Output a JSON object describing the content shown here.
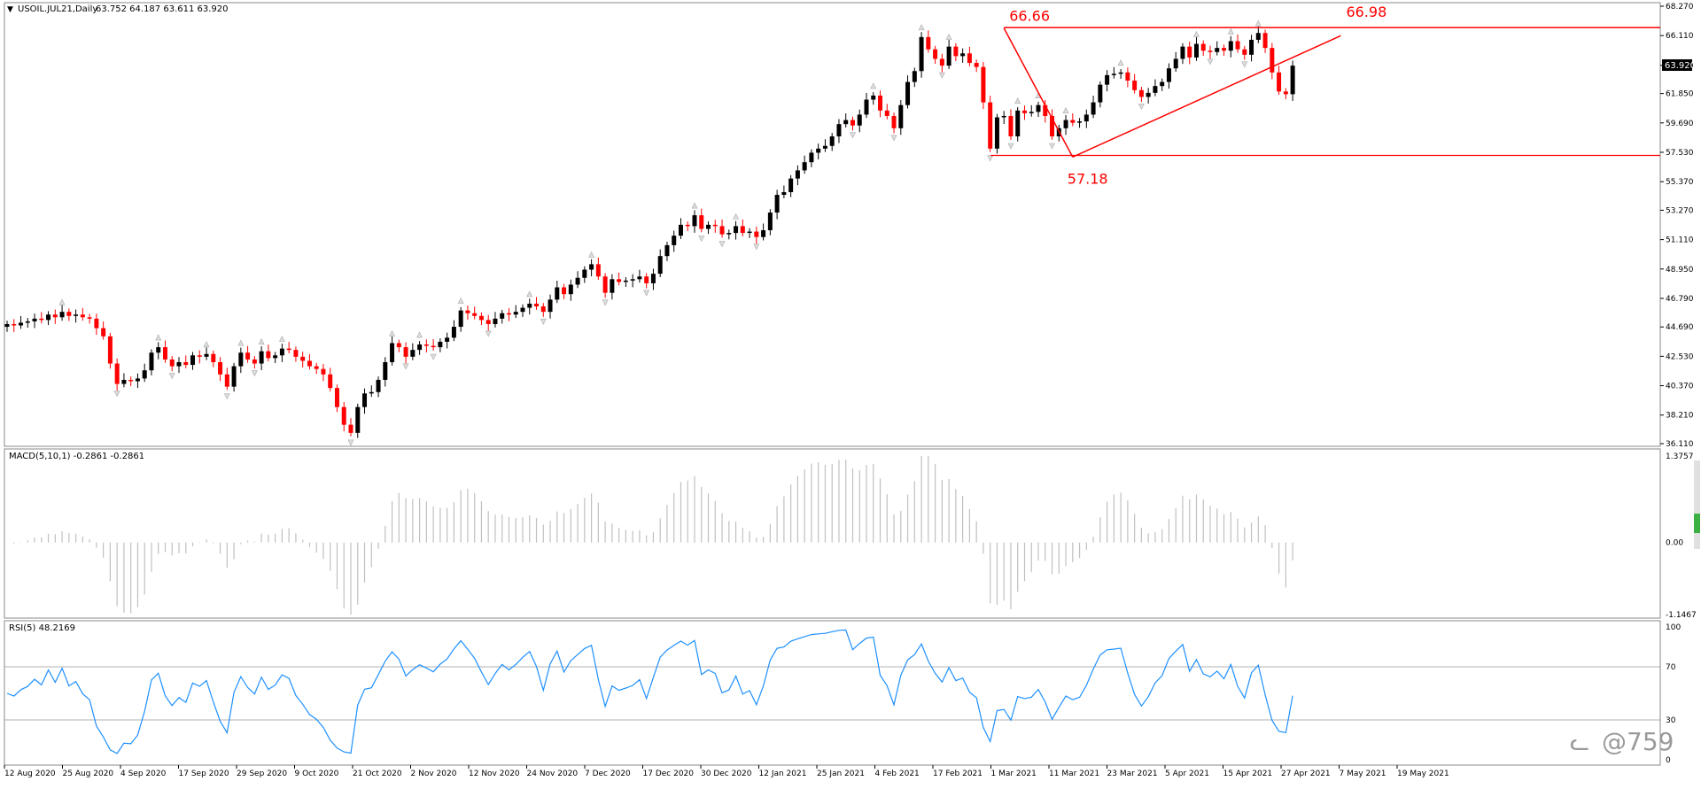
{
  "header": {
    "symbol_label": "USOIL.JUL21,Daily",
    "ohlc_label": "63.752 64.187 63.611 63.920"
  },
  "price_panel": {
    "y_ticks": [
      "68.270",
      "66.110",
      "63.920",
      "61.850",
      "59.690",
      "57.530",
      "55.370",
      "53.270",
      "51.110",
      "48.950",
      "46.790",
      "44.690",
      "42.530",
      "40.370",
      "38.210",
      "36.110"
    ],
    "current_price": "63.920",
    "annotations": [
      {
        "label": "66.66",
        "date_index": 145,
        "price": 66.66
      },
      {
        "label": "66.98",
        "date_index": 194,
        "price": 66.98
      },
      {
        "label": "57.18",
        "date_index": 155,
        "price": 57.18
      }
    ],
    "lines": {
      "resistance": 66.7,
      "support": 57.3,
      "drop_line": {
        "from": {
          "i": 145,
          "p": 66.66
        },
        "to": {
          "i": 155,
          "p": 57.18
        }
      },
      "trend_line": {
        "from": {
          "i": 155,
          "p": 57.18
        },
        "to": {
          "i": 194,
          "p": 66.1
        }
      }
    }
  },
  "macd_panel": {
    "label": "MACD(5,10,1) -0.2861 -0.2861",
    "ticks": [
      "1.3757",
      "0.00",
      "-1.1467"
    ]
  },
  "rsi_panel": {
    "label": "RSI(5) 48.2169",
    "ticks": [
      "100",
      "70",
      "30",
      "0"
    ]
  },
  "x_axis": {
    "labels": [
      "12 Aug 2020",
      "25 Aug 2020",
      "4 Sep 2020",
      "17 Sep 2020",
      "29 Sep 2020",
      "9 Oct 2020",
      "21 Oct 2020",
      "2 Nov 2020",
      "12 Nov 2020",
      "24 Nov 2020",
      "7 Dec 2020",
      "17 Dec 2020",
      "30 Dec 2020",
      "12 Jan 2021",
      "25 Jan 2021",
      "4 Feb 2021",
      "17 Feb 2021",
      "1 Mar 2021",
      "11 Mar 2021",
      "23 Mar 2021",
      "5 Apr 2021",
      "15 Apr 2021",
      "27 Apr 2021",
      "7 May 2021",
      "19 May 2021"
    ]
  },
  "watermark": "@759",
  "colors": {
    "bull": "#000000",
    "bear": "#ff0000",
    "annotation": "#ff0000",
    "rsi_line": "#1e90ff",
    "macd_hist": "#c0c0c0",
    "grid": "#888888",
    "scrollbar_green": "#3cb043"
  },
  "chart_data": {
    "type": "candlestick",
    "closes": [
      44.9,
      44.8,
      45.0,
      45.1,
      45.3,
      45.2,
      45.6,
      45.4,
      45.8,
      45.5,
      45.6,
      45.4,
      45.3,
      44.6,
      44.0,
      42.0,
      40.5,
      40.8,
      40.7,
      40.9,
      41.5,
      42.8,
      43.2,
      42.3,
      41.8,
      42.1,
      41.9,
      42.6,
      42.5,
      42.7,
      42.1,
      41.2,
      40.3,
      41.8,
      42.8,
      42.3,
      42.0,
      42.9,
      42.4,
      42.6,
      43.1,
      43.0,
      42.5,
      42.2,
      41.8,
      41.6,
      41.2,
      40.2,
      38.8,
      37.5,
      36.9,
      38.8,
      39.8,
      39.9,
      40.8,
      42.1,
      43.5,
      43.2,
      42.5,
      43.0,
      43.4,
      43.3,
      43.2,
      43.6,
      43.9,
      44.7,
      45.9,
      45.7,
      45.5,
      45.2,
      44.9,
      45.3,
      45.7,
      45.6,
      45.8,
      46.1,
      46.4,
      46.2,
      45.8,
      46.7,
      47.6,
      47.1,
      47.8,
      48.3,
      48.9,
      49.3,
      48.4,
      47.2,
      48.2,
      48.0,
      48.1,
      48.2,
      48.4,
      47.9,
      48.6,
      49.9,
      50.7,
      51.4,
      52.2,
      52.1,
      52.9,
      51.9,
      52.2,
      52.1,
      51.5,
      51.6,
      52.1,
      51.6,
      51.7,
      51.3,
      51.8,
      53.1,
      54.4,
      54.6,
      55.6,
      56.2,
      56.8,
      57.5,
      57.8,
      58.0,
      58.7,
      59.6,
      59.9,
      59.5,
      60.3,
      61.4,
      61.7,
      60.6,
      60.2,
      59.3,
      61.0,
      62.7,
      63.5,
      66.0,
      65.1,
      64.4,
      63.9,
      65.3,
      64.6,
      64.8,
      64.1,
      63.8,
      61.2,
      57.8,
      60.1,
      60.2,
      58.7,
      60.6,
      60.4,
      60.5,
      61.0,
      60.2,
      58.7,
      59.3,
      59.9,
      59.7,
      59.8,
      60.3,
      61.2,
      62.5,
      63.2,
      63.3,
      63.4,
      62.8,
      62.1,
      61.6,
      61.9,
      62.4,
      62.7,
      63.7,
      64.4,
      65.3,
      64.5,
      65.5,
      65.0,
      64.9,
      65.2,
      65.0,
      65.7,
      65.1,
      64.7,
      65.8,
      66.3,
      65.2,
      63.4,
      62.0,
      61.8,
      63.9
    ],
    "price_range": [
      36.11,
      68.27
    ],
    "macd_range": [
      -1.1467,
      1.3757
    ],
    "rsi_range": [
      0,
      100
    ],
    "rsi_levels": [
      70,
      30
    ],
    "rsi_last": 48.2169,
    "macd_last": -0.2861
  }
}
